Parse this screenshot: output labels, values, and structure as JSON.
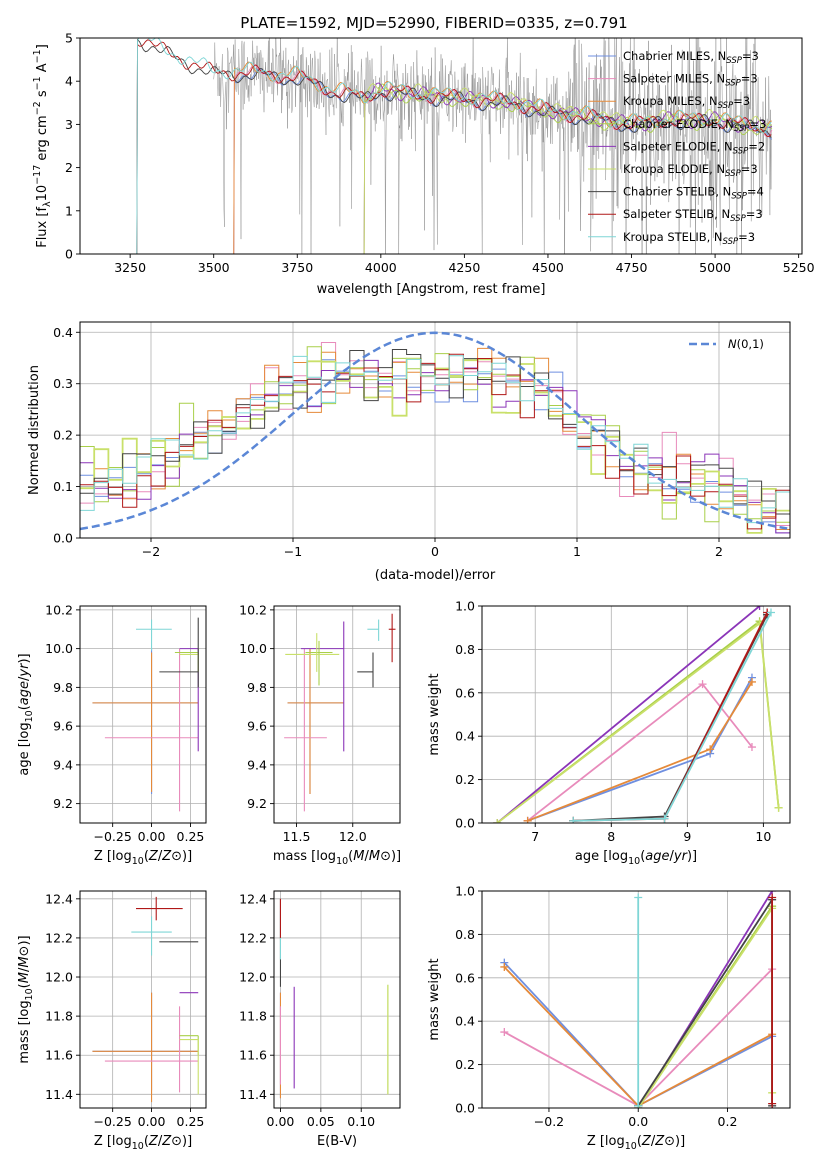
{
  "title": "PLATE=1592, MJD=52990, FIBERID=0335, z=0.791",
  "colors": {
    "Chabrier MILES": "#6f8fe0",
    "Salpeter MILES": "#e88bbb",
    "Kroupa MILES": "#e58a3a",
    "Chabrier ELODIE": "#a9cf4a",
    "Salpeter ELODIE": "#8b35b8",
    "Kroupa ELODIE": "#c9e06a",
    "Chabrier STELIB": "#444444",
    "Salpeter STELIB": "#b01818",
    "Kroupa STELIB": "#7fd6d6",
    "gauss": "#5b87d6"
  },
  "chart_data": [
    {
      "id": "spectrum",
      "type": "line",
      "xlabel": "wavelength [Angstrom, rest frame]",
      "ylabel": "Flux [f_λ10^{-17} erg cm^{-2} s^{-1} A^{-1}]",
      "xlim": [
        3100,
        5260
      ],
      "ylim": [
        0,
        5
      ],
      "xticks": [
        "3250",
        "3500",
        "3750",
        "4000",
        "4250",
        "4500",
        "4750",
        "5000",
        "5250"
      ],
      "yticks": [
        "0",
        "1",
        "2",
        "3",
        "4",
        "5"
      ],
      "legend": {
        "placement": "upper right",
        "entries": [
          {
            "base": "Chabrier MILES, N",
            "sub": "SSP",
            "tail": "=3"
          },
          {
            "base": "Salpeter MILES, N",
            "sub": "SSP",
            "tail": "=3"
          },
          {
            "base": "Kroupa MILES, N",
            "sub": "SSP",
            "tail": "=3"
          },
          {
            "base": "Chabrier ELODIE, N",
            "sub": "SSP",
            "tail": "=3"
          },
          {
            "base": "Salpeter ELODIE, N",
            "sub": "SSP",
            "tail": "=2"
          },
          {
            "base": "Kroupa ELODIE, N",
            "sub": "SSP",
            "tail": "=3"
          },
          {
            "base": "Chabrier STELIB, N",
            "sub": "SSP",
            "tail": "=4"
          },
          {
            "base": "Salpeter STELIB, N",
            "sub": "SSP",
            "tail": "=3"
          },
          {
            "base": "Kroupa STELIB, N",
            "sub": "SSP",
            "tail": "=3"
          }
        ]
      },
      "model_starts": {
        "MILES": 3560,
        "ELODIE": 3950,
        "STELIB": 3270
      },
      "continuum": [
        [
          3280,
          5.0
        ],
        [
          3350,
          4.7
        ],
        [
          3500,
          4.2
        ],
        [
          3600,
          4.2
        ],
        [
          3750,
          4.1
        ],
        [
          3850,
          3.8
        ],
        [
          3950,
          3.6
        ],
        [
          4000,
          3.8
        ],
        [
          4100,
          3.7
        ],
        [
          4250,
          3.6
        ],
        [
          4400,
          3.5
        ],
        [
          4500,
          3.3
        ],
        [
          4600,
          3.2
        ],
        [
          4750,
          3.0
        ],
        [
          4850,
          3.1
        ],
        [
          5000,
          3.1
        ],
        [
          5150,
          2.9
        ]
      ],
      "data_range": [
        3500,
        5170
      ]
    },
    {
      "id": "residuals",
      "type": "histogram",
      "xlabel": "(data-model)/error",
      "ylabel": "Normed distribution",
      "xlim": [
        -2.5,
        2.5
      ],
      "ylim": [
        0,
        0.42
      ],
      "xticks": [
        "−2",
        "−1",
        "0",
        "1",
        "2"
      ],
      "yticks": [
        "0.0",
        "0.1",
        "0.2",
        "0.3",
        "0.4"
      ],
      "legend": {
        "placement": "upper right",
        "entries": [
          "N(0,1)"
        ]
      },
      "bin_width": 0.1,
      "envelope": [
        [
          -2.5,
          0.09
        ],
        [
          -2.0,
          0.13
        ],
        [
          -1.5,
          0.21
        ],
        [
          -1.1,
          0.28
        ],
        [
          -0.6,
          0.31
        ],
        [
          -0.2,
          0.32
        ],
        [
          0.0,
          0.31
        ],
        [
          0.4,
          0.32
        ],
        [
          0.7,
          0.3
        ],
        [
          1.0,
          0.22
        ],
        [
          1.3,
          0.16
        ],
        [
          1.7,
          0.12
        ],
        [
          2.0,
          0.09
        ],
        [
          2.5,
          0.03
        ]
      ]
    },
    {
      "id": "age_vs_Z",
      "type": "scatter",
      "xlabel": "Z [log10(Z/Z⊙)]",
      "ylabel": "age  [log10(age/yr)]",
      "xlim": [
        -0.46,
        0.35
      ],
      "ylim": [
        9.1,
        10.22
      ],
      "xticks": [
        "−0.25",
        "0.00",
        "0.25"
      ],
      "yticks": [
        "9.2",
        "9.4",
        "9.6",
        "9.8",
        "10.0",
        "10.2"
      ],
      "points": [
        {
          "model": "Chabrier MILES",
          "x": 0.0,
          "y": 9.72,
          "xerr": [
            0.38,
            0.3
          ],
          "yerr": [
            0.47,
            0.28
          ]
        },
        {
          "model": "Kroupa MILES",
          "x": 0.0,
          "y": 9.72,
          "xerr": [
            0.38,
            0.3
          ],
          "yerr": [
            0.46,
            0.26
          ]
        },
        {
          "model": "Salpeter MILES",
          "x": 0.18,
          "y": 9.54,
          "xerr": [
            0.48,
            0.12
          ],
          "yerr": [
            0.38,
            0.46
          ]
        },
        {
          "model": "Salpeter ELODIE",
          "x": 0.3,
          "y": 10.0,
          "xerr": [
            0.12,
            0.0
          ],
          "yerr": [
            0.53,
            0.0
          ]
        },
        {
          "model": "Chabrier ELODIE",
          "x": 0.3,
          "y": 9.98,
          "xerr": [
            0.15,
            0.0
          ],
          "yerr": [
            0.1,
            0.0
          ]
        },
        {
          "model": "Kroupa ELODIE",
          "x": 0.3,
          "y": 9.97,
          "xerr": [
            0.12,
            0.0
          ],
          "yerr": [
            0.09,
            0.0
          ]
        },
        {
          "model": "Chabrier STELIB",
          "x": 0.3,
          "y": 9.88,
          "xerr": [
            0.25,
            0.0
          ],
          "yerr": [
            0.08,
            0.28
          ]
        },
        {
          "model": "Kroupa STELIB",
          "x": 0.0,
          "y": 10.1,
          "xerr": [
            0.1,
            0.13
          ],
          "yerr": [
            0.11,
            0.05
          ]
        },
        {
          "model": "Salpeter STELIB",
          "x": 0.3,
          "y": 10.1,
          "xerr": [
            0.0,
            0.0
          ],
          "yerr": [
            0.0,
            0.0
          ]
        }
      ]
    },
    {
      "id": "age_vs_mass",
      "type": "scatter",
      "xlabel": "mass [log10(M/M⊙)]",
      "ylabel": "",
      "xlim": [
        11.3,
        12.42
      ],
      "ylim": [
        9.1,
        10.22
      ],
      "xticks": [
        "11.5",
        "12.0"
      ],
      "yticks": [
        "9.2",
        "9.4",
        "9.6",
        "9.8",
        "10.0",
        "10.2"
      ],
      "points": [
        {
          "model": "Chabrier MILES",
          "x": 11.62,
          "y": 9.72,
          "xerr": [
            0.2,
            0.3
          ],
          "yerr": [
            0.47,
            0.28
          ]
        },
        {
          "model": "Kroupa MILES",
          "x": 11.62,
          "y": 9.72,
          "xerr": [
            0.2,
            0.3
          ],
          "yerr": [
            0.47,
            0.28
          ]
        },
        {
          "model": "Salpeter MILES",
          "x": 11.57,
          "y": 9.54,
          "xerr": [
            0.18,
            0.2
          ],
          "yerr": [
            0.38,
            0.46
          ]
        },
        {
          "model": "Salpeter ELODIE",
          "x": 11.92,
          "y": 10.0,
          "xerr": [
            0.38,
            0.0
          ],
          "yerr": [
            0.53,
            0.14
          ]
        },
        {
          "model": "Chabrier ELODIE",
          "x": 11.7,
          "y": 9.98,
          "xerr": [
            0.12,
            0.12
          ],
          "yerr": [
            0.17,
            0.06
          ]
        },
        {
          "model": "Kroupa ELODIE",
          "x": 11.68,
          "y": 9.97,
          "xerr": [
            0.28,
            0.2
          ],
          "yerr": [
            0.09,
            0.11
          ]
        },
        {
          "model": "Chabrier STELIB",
          "x": 12.18,
          "y": 9.88,
          "xerr": [
            0.14,
            0.0
          ],
          "yerr": [
            0.08,
            0.1
          ]
        },
        {
          "model": "Kroupa STELIB",
          "x": 12.23,
          "y": 10.1,
          "xerr": [
            0.1,
            0.0
          ],
          "yerr": [
            0.06,
            0.05
          ]
        },
        {
          "model": "Salpeter STELIB",
          "x": 12.35,
          "y": 10.1,
          "xerr": [
            0.03,
            0.03
          ],
          "yerr": [
            0.17,
            0.08
          ]
        }
      ]
    },
    {
      "id": "weight_vs_age",
      "type": "line",
      "xlabel": "age  [log10(age/yr)]",
      "ylabel": "mass weight",
      "xlim": [
        6.3,
        10.35
      ],
      "ylim": [
        0,
        1
      ],
      "xticks": [
        "7",
        "8",
        "9",
        "10"
      ],
      "yticks": [
        "0.0",
        "0.2",
        "0.4",
        "0.6",
        "0.8",
        "1.0"
      ],
      "series": [
        {
          "model": "Chabrier MILES",
          "x": [
            6.9,
            9.3,
            9.85
          ],
          "y": [
            0.01,
            0.32,
            0.67
          ]
        },
        {
          "model": "Salpeter MILES",
          "x": [
            6.9,
            9.2,
            9.85
          ],
          "y": [
            0.01,
            0.64,
            0.35
          ]
        },
        {
          "model": "Kroupa MILES",
          "x": [
            6.9,
            9.3,
            9.85
          ],
          "y": [
            0.01,
            0.34,
            0.65
          ]
        },
        {
          "model": "Chabrier ELODIE",
          "x": [
            6.5,
            9.95,
            10.2
          ],
          "y": [
            0.0,
            0.93,
            0.07
          ]
        },
        {
          "model": "Salpeter ELODIE",
          "x": [
            6.5,
            9.95
          ],
          "y": [
            0.0,
            1.0
          ]
        },
        {
          "model": "Kroupa ELODIE",
          "x": [
            6.5,
            9.95,
            10.2
          ],
          "y": [
            0.0,
            0.92,
            0.07
          ]
        },
        {
          "model": "Chabrier STELIB",
          "x": [
            7.5,
            8.7,
            10.05
          ],
          "y": [
            0.01,
            0.03,
            0.96
          ]
        },
        {
          "model": "Salpeter STELIB",
          "x": [
            7.5,
            8.7,
            10.05
          ],
          "y": [
            0.01,
            0.02,
            0.97
          ]
        },
        {
          "model": "Kroupa STELIB",
          "x": [
            7.5,
            8.7,
            10.1
          ],
          "y": [
            0.01,
            0.02,
            0.97
          ]
        }
      ]
    },
    {
      "id": "mass_vs_Z",
      "type": "scatter",
      "xlabel": "Z [log10(Z/Z⊙)]",
      "ylabel": "mass [log10(M/M⊙)]",
      "xlim": [
        -0.46,
        0.35
      ],
      "ylim": [
        11.33,
        12.44
      ],
      "xticks": [
        "−0.25",
        "0.00",
        "0.25"
      ],
      "yticks": [
        "11.4",
        "11.6",
        "11.8",
        "12.0",
        "12.2",
        "12.4"
      ],
      "points": [
        {
          "model": "Chabrier MILES",
          "x": 0.0,
          "y": 11.62,
          "xerr": [
            0.38,
            0.3
          ],
          "yerr": [
            0.2,
            0.3
          ]
        },
        {
          "model": "Kroupa MILES",
          "x": 0.0,
          "y": 11.62,
          "xerr": [
            0.38,
            0.3
          ],
          "yerr": [
            0.26,
            0.3
          ]
        },
        {
          "model": "Salpeter MILES",
          "x": 0.18,
          "y": 11.57,
          "xerr": [
            0.48,
            0.12
          ],
          "yerr": [
            0.16,
            0.28
          ]
        },
        {
          "model": "Salpeter ELODIE",
          "x": 0.3,
          "y": 11.92,
          "xerr": [
            0.12,
            0.0
          ],
          "yerr": [
            0.0,
            0.0
          ]
        },
        {
          "model": "Chabrier ELODIE",
          "x": 0.3,
          "y": 11.7,
          "xerr": [
            0.12,
            0.0
          ],
          "yerr": [
            0.1,
            0.0
          ]
        },
        {
          "model": "Kroupa ELODIE",
          "x": 0.3,
          "y": 11.68,
          "xerr": [
            0.12,
            0.0
          ],
          "yerr": [
            0.28,
            0.0
          ]
        },
        {
          "model": "Chabrier STELIB",
          "x": 0.3,
          "y": 12.18,
          "xerr": [
            0.25,
            0.0
          ],
          "yerr": [
            0.0,
            0.0
          ]
        },
        {
          "model": "Kroupa STELIB",
          "x": 0.0,
          "y": 12.23,
          "xerr": [
            0.13,
            0.13
          ],
          "yerr": [
            0.12,
            0.08
          ]
        },
        {
          "model": "Salpeter STELIB",
          "x": 0.03,
          "y": 12.35,
          "xerr": [
            0.13,
            0.17
          ],
          "yerr": [
            0.06,
            0.06
          ]
        }
      ]
    },
    {
      "id": "mass_vs_ebv",
      "type": "scatter",
      "xlabel": "E(B-V)",
      "ylabel": "",
      "xlim": [
        -0.008,
        0.148
      ],
      "ylim": [
        11.33,
        12.44
      ],
      "xticks": [
        "0.00",
        "0.05",
        "0.10"
      ],
      "yticks": [
        "11.4",
        "11.6",
        "11.8",
        "12.0",
        "12.2",
        "12.4"
      ],
      "points": [
        {
          "model": "Chabrier MILES",
          "x": 0.0,
          "y": 11.62,
          "xerr": [
            0,
            0
          ],
          "yerr": [
            0.24,
            0.3
          ]
        },
        {
          "model": "Kroupa MILES",
          "x": 0.0,
          "y": 11.62,
          "xerr": [
            0,
            0
          ],
          "yerr": [
            0.24,
            0.3
          ]
        },
        {
          "model": "Salpeter MILES",
          "x": 0.0,
          "y": 11.55,
          "xerr": [
            0,
            0
          ],
          "yerr": [
            0.1,
            0.3
          ]
        },
        {
          "model": "Salpeter ELODIE",
          "x": 0.017,
          "y": 11.75,
          "xerr": [
            0,
            0
          ],
          "yerr": [
            0.32,
            0.2
          ]
        },
        {
          "model": "Chabrier ELODIE",
          "x": 0.133,
          "y": 11.68,
          "xerr": [
            0,
            0
          ],
          "yerr": [
            0.28,
            0.28
          ]
        },
        {
          "model": "Kroupa ELODIE",
          "x": 0.133,
          "y": 11.68,
          "xerr": [
            0,
            0
          ],
          "yerr": [
            0.28,
            0.28
          ]
        },
        {
          "model": "Chabrier STELIB",
          "x": 0.0,
          "y": 12.15,
          "xerr": [
            0,
            0
          ],
          "yerr": [
            0.2,
            0.25
          ]
        },
        {
          "model": "Kroupa STELIB",
          "x": 0.0,
          "y": 12.22,
          "xerr": [
            0,
            0
          ],
          "yerr": [
            0.13,
            0.12
          ]
        },
        {
          "model": "Salpeter STELIB",
          "x": 0.0,
          "y": 12.3,
          "xerr": [
            0,
            0
          ],
          "yerr": [
            0.1,
            0.1
          ]
        }
      ]
    },
    {
      "id": "weight_vs_Z",
      "type": "line",
      "xlabel": "Z [log10(Z/Z⊙)]",
      "ylabel": "mass weight",
      "xlim": [
        -0.35,
        0.34
      ],
      "ylim": [
        0,
        1
      ],
      "xticks": [
        "−0.2",
        "0.0",
        "0.2"
      ],
      "yticks": [
        "0.0",
        "0.2",
        "0.4",
        "0.6",
        "0.8",
        "1.0"
      ],
      "series": [
        {
          "model": "Chabrier MILES",
          "x": [
            -0.3,
            0.0,
            0.3
          ],
          "y": [
            0.67,
            0.01,
            0.33
          ]
        },
        {
          "model": "Salpeter MILES",
          "x": [
            -0.3,
            0.0,
            0.3
          ],
          "y": [
            0.35,
            0.01,
            0.64
          ]
        },
        {
          "model": "Kroupa MILES",
          "x": [
            -0.3,
            0.0,
            0.3
          ],
          "y": [
            0.65,
            0.01,
            0.34
          ]
        },
        {
          "model": "Chabrier ELODIE",
          "x": [
            0.0,
            0.3
          ],
          "y": [
            0.0,
            0.93
          ]
        },
        {
          "model": "Salpeter ELODIE",
          "x": [
            0.0,
            0.3
          ],
          "y": [
            0.0,
            1.0
          ]
        },
        {
          "model": "Kroupa ELODIE",
          "x": [
            0.0,
            0.3,
            0.3
          ],
          "y": [
            0.0,
            0.92,
            0.07
          ]
        },
        {
          "model": "Chabrier STELIB",
          "x": [
            0.0,
            0.3,
            0.3
          ],
          "y": [
            0.01,
            0.96,
            0.01
          ]
        },
        {
          "model": "Salpeter STELIB",
          "x": [
            0.3,
            0.3
          ],
          "y": [
            0.97,
            0.02
          ]
        },
        {
          "model": "Kroupa STELIB",
          "x": [
            0.0,
            0.0
          ],
          "y": [
            0.01,
            0.97
          ]
        }
      ]
    }
  ]
}
